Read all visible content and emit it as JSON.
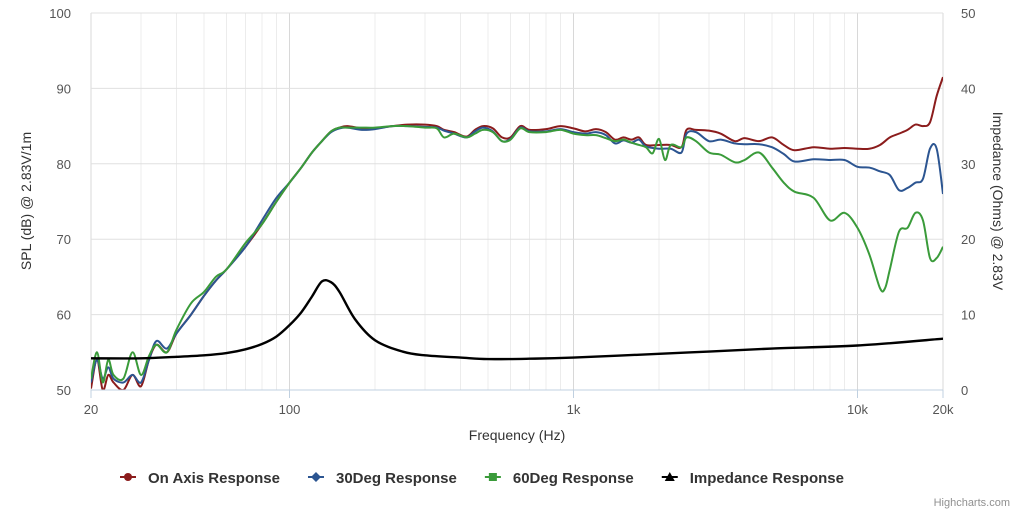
{
  "credits": "Highcharts.com",
  "chart_data": {
    "type": "line",
    "title": "",
    "xlabel": "Frequency (Hz)",
    "ylabel": "SPL (dB) @ 2.83V/1m",
    "y2label": "Impedance (Ohms) @ 2.83V",
    "xscale": "log",
    "xlim": [
      20,
      20000
    ],
    "ylim": [
      50,
      100
    ],
    "y2lim": [
      0,
      50
    ],
    "grid": true,
    "legend_position": "bottom-center",
    "x_ticks": [
      {
        "value": 20,
        "label": "20"
      },
      {
        "value": 100,
        "label": "100"
      },
      {
        "value": 1000,
        "label": "1k"
      },
      {
        "value": 10000,
        "label": "10k"
      },
      {
        "value": 20000,
        "label": "20k"
      }
    ],
    "y_ticks": [
      "50",
      "60",
      "70",
      "80",
      "90",
      "100"
    ],
    "y2_ticks": [
      "0",
      "10",
      "20",
      "30",
      "40",
      "50"
    ],
    "series": [
      {
        "name": "On Axis Response",
        "color": "#8b1c1c",
        "axis": "left",
        "marker": "circle",
        "points": [
          [
            20,
            50.2
          ],
          [
            21,
            54
          ],
          [
            22,
            50
          ],
          [
            23,
            52
          ],
          [
            24,
            51
          ],
          [
            26,
            50
          ],
          [
            28,
            52
          ],
          [
            30,
            50.5
          ],
          [
            32,
            54
          ],
          [
            34,
            56
          ],
          [
            37,
            55
          ],
          [
            40,
            57.5
          ],
          [
            45,
            60
          ],
          [
            50,
            62.5
          ],
          [
            55,
            64.5
          ],
          [
            60,
            66
          ],
          [
            70,
            69
          ],
          [
            80,
            72
          ],
          [
            90,
            75
          ],
          [
            100,
            77.5
          ],
          [
            110,
            79.5
          ],
          [
            120,
            81.5
          ],
          [
            130,
            83
          ],
          [
            140,
            84.3
          ],
          [
            150,
            84.8
          ],
          [
            160,
            85
          ],
          [
            180,
            84.7
          ],
          [
            200,
            84.7
          ],
          [
            230,
            85
          ],
          [
            260,
            85.2
          ],
          [
            300,
            85.2
          ],
          [
            330,
            85
          ],
          [
            350,
            84.5
          ],
          [
            380,
            84.2
          ],
          [
            420,
            83.6
          ],
          [
            450,
            84.5
          ],
          [
            480,
            85
          ],
          [
            520,
            84.7
          ],
          [
            560,
            83.5
          ],
          [
            600,
            83.5
          ],
          [
            650,
            85
          ],
          [
            700,
            84.5
          ],
          [
            800,
            84.6
          ],
          [
            900,
            85
          ],
          [
            1000,
            84.7
          ],
          [
            1100,
            84.3
          ],
          [
            1200,
            84.6
          ],
          [
            1300,
            84.2
          ],
          [
            1400,
            83.2
          ],
          [
            1500,
            83.5
          ],
          [
            1600,
            83.2
          ],
          [
            1700,
            83.5
          ],
          [
            1800,
            82.5
          ],
          [
            2000,
            82.5
          ],
          [
            2200,
            82.5
          ],
          [
            2400,
            82.2
          ],
          [
            2500,
            84.5
          ],
          [
            2700,
            84.5
          ],
          [
            3000,
            84.4
          ],
          [
            3300,
            84
          ],
          [
            3700,
            83
          ],
          [
            4000,
            83.4
          ],
          [
            4500,
            83
          ],
          [
            5000,
            83.5
          ],
          [
            5500,
            82.5
          ],
          [
            6000,
            81.8
          ],
          [
            7000,
            82.2
          ],
          [
            8000,
            82
          ],
          [
            9000,
            82.1
          ],
          [
            10000,
            82
          ],
          [
            11000,
            82
          ],
          [
            12000,
            82.5
          ],
          [
            13000,
            83.5
          ],
          [
            14000,
            84
          ],
          [
            15000,
            84.5
          ],
          [
            16000,
            85.2
          ],
          [
            17000,
            85
          ],
          [
            18000,
            85.5
          ],
          [
            19000,
            89
          ],
          [
            20000,
            91.5
          ]
        ]
      },
      {
        "name": "30Deg Response",
        "color": "#2c5591",
        "axis": "left",
        "marker": "diamond",
        "points": [
          [
            20,
            51
          ],
          [
            21,
            54
          ],
          [
            22,
            51.5
          ],
          [
            23,
            53
          ],
          [
            24,
            51.5
          ],
          [
            26,
            51
          ],
          [
            28,
            52
          ],
          [
            30,
            51
          ],
          [
            32,
            54
          ],
          [
            34,
            56.5
          ],
          [
            37,
            55.5
          ],
          [
            40,
            57.5
          ],
          [
            45,
            60
          ],
          [
            50,
            62.5
          ],
          [
            55,
            64.5
          ],
          [
            60,
            66
          ],
          [
            70,
            69
          ],
          [
            80,
            72.5
          ],
          [
            90,
            75.5
          ],
          [
            100,
            77.5
          ],
          [
            110,
            79.5
          ],
          [
            120,
            81.5
          ],
          [
            130,
            83
          ],
          [
            140,
            84.2
          ],
          [
            150,
            84.7
          ],
          [
            160,
            84.8
          ],
          [
            180,
            84.5
          ],
          [
            200,
            84.6
          ],
          [
            230,
            85
          ],
          [
            260,
            85
          ],
          [
            300,
            84.9
          ],
          [
            330,
            84.8
          ],
          [
            350,
            84.4
          ],
          [
            380,
            84
          ],
          [
            420,
            83.5
          ],
          [
            450,
            84.3
          ],
          [
            480,
            84.8
          ],
          [
            520,
            84.3
          ],
          [
            560,
            83
          ],
          [
            600,
            83.3
          ],
          [
            650,
            84.8
          ],
          [
            700,
            84.3
          ],
          [
            800,
            84.3
          ],
          [
            900,
            84.6
          ],
          [
            1000,
            84.2
          ],
          [
            1100,
            84
          ],
          [
            1200,
            84.2
          ],
          [
            1300,
            83.8
          ],
          [
            1400,
            82.7
          ],
          [
            1500,
            83.1
          ],
          [
            1600,
            82.8
          ],
          [
            1700,
            83.2
          ],
          [
            1800,
            82.3
          ],
          [
            2000,
            82
          ],
          [
            2200,
            82
          ],
          [
            2400,
            81.5
          ],
          [
            2500,
            84
          ],
          [
            2700,
            84.2
          ],
          [
            3000,
            83
          ],
          [
            3300,
            83.2
          ],
          [
            3700,
            82.7
          ],
          [
            4000,
            82.6
          ],
          [
            4500,
            82.6
          ],
          [
            5000,
            82.2
          ],
          [
            5500,
            81.3
          ],
          [
            6000,
            80.3
          ],
          [
            7000,
            80.6
          ],
          [
            8000,
            80.5
          ],
          [
            9000,
            80.5
          ],
          [
            10000,
            79.6
          ],
          [
            11000,
            79.5
          ],
          [
            12000,
            79
          ],
          [
            13000,
            78.5
          ],
          [
            14000,
            76.5
          ],
          [
            15000,
            76.8
          ],
          [
            16000,
            77.5
          ],
          [
            17000,
            78
          ],
          [
            18000,
            82
          ],
          [
            19000,
            82
          ],
          [
            20000,
            76
          ]
        ]
      },
      {
        "name": "60Deg Response",
        "color": "#3a9b3a",
        "axis": "left",
        "marker": "square",
        "points": [
          [
            20,
            51.5
          ],
          [
            21,
            55
          ],
          [
            22,
            51
          ],
          [
            23,
            54
          ],
          [
            24,
            52
          ],
          [
            26,
            51.5
          ],
          [
            28,
            55
          ],
          [
            30,
            52
          ],
          [
            32,
            54.5
          ],
          [
            34,
            56
          ],
          [
            37,
            55
          ],
          [
            40,
            58
          ],
          [
            45,
            61.5
          ],
          [
            50,
            63
          ],
          [
            55,
            65
          ],
          [
            60,
            66
          ],
          [
            70,
            69.5
          ],
          [
            80,
            72
          ],
          [
            90,
            75
          ],
          [
            100,
            77.5
          ],
          [
            110,
            79.5
          ],
          [
            120,
            81.5
          ],
          [
            130,
            83
          ],
          [
            140,
            84.3
          ],
          [
            150,
            84.8
          ],
          [
            160,
            84.8
          ],
          [
            180,
            84.8
          ],
          [
            200,
            84.8
          ],
          [
            230,
            85
          ],
          [
            260,
            85
          ],
          [
            300,
            84.8
          ],
          [
            330,
            84.7
          ],
          [
            350,
            83.5
          ],
          [
            380,
            84
          ],
          [
            420,
            83.5
          ],
          [
            450,
            84
          ],
          [
            480,
            84.5
          ],
          [
            520,
            84.2
          ],
          [
            560,
            83
          ],
          [
            600,
            83.2
          ],
          [
            650,
            84.7
          ],
          [
            700,
            84.2
          ],
          [
            800,
            84.2
          ],
          [
            900,
            84.5
          ],
          [
            1000,
            84
          ],
          [
            1100,
            83.8
          ],
          [
            1200,
            83.8
          ],
          [
            1300,
            83.4
          ],
          [
            1400,
            83
          ],
          [
            1500,
            83.2
          ],
          [
            1600,
            82.8
          ],
          [
            1700,
            82.5
          ],
          [
            1800,
            82.2
          ],
          [
            1900,
            81.4
          ],
          [
            2000,
            83.3
          ],
          [
            2100,
            80.5
          ],
          [
            2200,
            82.5
          ],
          [
            2400,
            82.2
          ],
          [
            2500,
            83.5
          ],
          [
            2700,
            83
          ],
          [
            3000,
            81.5
          ],
          [
            3300,
            81.2
          ],
          [
            3700,
            80.2
          ],
          [
            4000,
            80.5
          ],
          [
            4500,
            81.5
          ],
          [
            5000,
            79.5
          ],
          [
            5500,
            77.5
          ],
          [
            6000,
            76.3
          ],
          [
            7000,
            75.5
          ],
          [
            8000,
            72.5
          ],
          [
            9000,
            73.5
          ],
          [
            10000,
            71.5
          ],
          [
            11000,
            68
          ],
          [
            12000,
            63.5
          ],
          [
            12500,
            63.5
          ],
          [
            13000,
            66
          ],
          [
            14000,
            71
          ],
          [
            15000,
            71.5
          ],
          [
            16000,
            73.5
          ],
          [
            17000,
            72.5
          ],
          [
            18000,
            67.5
          ],
          [
            19000,
            67.5
          ],
          [
            20000,
            69
          ]
        ]
      },
      {
        "name": "Impedance Response",
        "color": "#000000",
        "axis": "right",
        "marker": "triangle",
        "points": [
          [
            20,
            4.2
          ],
          [
            30,
            4.2
          ],
          [
            40,
            4.4
          ],
          [
            50,
            4.6
          ],
          [
            60,
            4.9
          ],
          [
            70,
            5.4
          ],
          [
            80,
            6.1
          ],
          [
            90,
            7.1
          ],
          [
            100,
            8.6
          ],
          [
            110,
            10.3
          ],
          [
            120,
            12.4
          ],
          [
            130,
            14.4
          ],
          [
            140,
            14.3
          ],
          [
            150,
            13
          ],
          [
            170,
            9.4
          ],
          [
            200,
            6.6
          ],
          [
            250,
            5.1
          ],
          [
            300,
            4.6
          ],
          [
            400,
            4.3
          ],
          [
            500,
            4.1
          ],
          [
            700,
            4.15
          ],
          [
            1000,
            4.3
          ],
          [
            2000,
            4.8
          ],
          [
            3000,
            5.1
          ],
          [
            5000,
            5.5
          ],
          [
            10000,
            5.9
          ],
          [
            20000,
            6.8
          ]
        ]
      }
    ]
  }
}
